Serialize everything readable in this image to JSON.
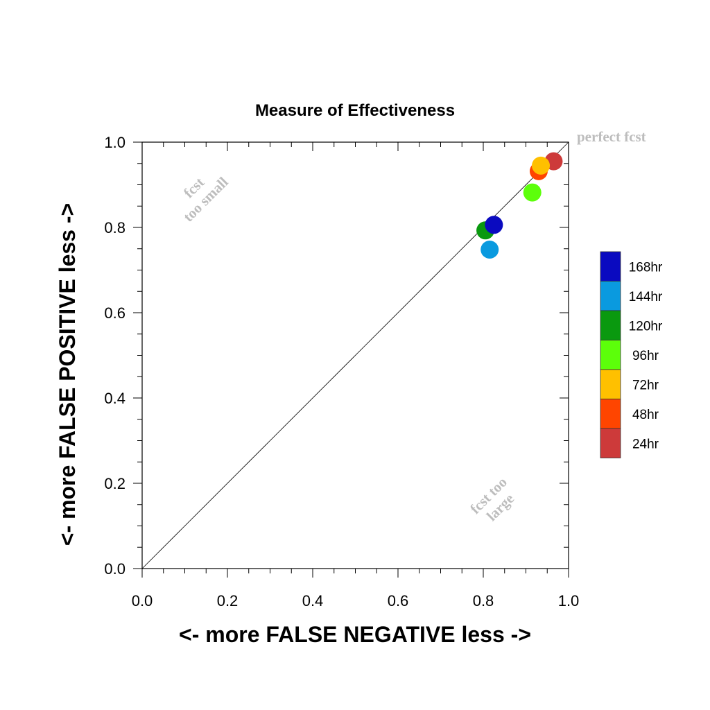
{
  "chart_data": {
    "type": "scatter",
    "title": "Measure of Effectiveness",
    "xlabel": "<- more   FALSE NEGATIVE   less ->",
    "ylabel": "<- more   FALSE POSITIVE   less ->",
    "xlim": [
      0.0,
      1.0
    ],
    "ylim": [
      0.0,
      1.0
    ],
    "x_ticks": [
      "0.0",
      "0.2",
      "0.4",
      "0.6",
      "0.8",
      "1.0"
    ],
    "y_ticks": [
      "0.0",
      "0.2",
      "0.4",
      "0.6",
      "0.8",
      "1.0"
    ],
    "reference_line": "diagonal",
    "grid": false,
    "legend_position": "right",
    "annotations": {
      "perfect": "perfect fcst",
      "too_small_1": "fcst",
      "too_small_2": "too small",
      "too_large_1": "fcst too",
      "too_large_2": "large"
    },
    "series": [
      {
        "name": "168hr",
        "color": "#0a0ac0",
        "x": 0.825,
        "y": 0.806
      },
      {
        "name": "144hr",
        "color": "#0a9adf",
        "x": 0.815,
        "y": 0.748
      },
      {
        "name": "120hr",
        "color": "#0a990f",
        "x": 0.805,
        "y": 0.793
      },
      {
        "name": "96hr",
        "color": "#5cff0a",
        "x": 0.915,
        "y": 0.882
      },
      {
        "name": "72hr",
        "color": "#ffc000",
        "x": 0.935,
        "y": 0.945
      },
      {
        "name": "48hr",
        "color": "#ff4500",
        "x": 0.93,
        "y": 0.932
      },
      {
        "name": "24hr",
        "color": "#cd3a3a",
        "x": 0.965,
        "y": 0.955
      }
    ],
    "draw_order": [
      "144hr",
      "120hr",
      "168hr",
      "96hr",
      "24hr",
      "48hr",
      "72hr"
    ]
  }
}
